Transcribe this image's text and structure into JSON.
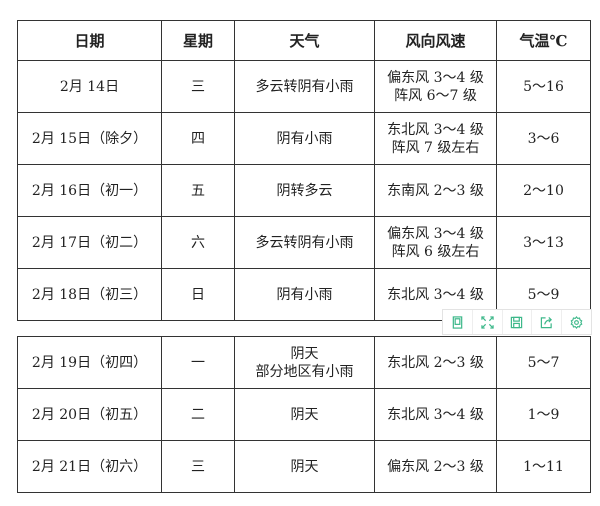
{
  "headers": [
    "日期",
    "星期",
    "天气",
    "风向风速",
    "气温℃"
  ],
  "rows_top": [
    {
      "date": "2月 14日",
      "weekday": "三",
      "weather": [
        "多云转阴有小雨"
      ],
      "wind": [
        "偏东风 3～4 级",
        "阵风 6～7 级"
      ],
      "temp": "5～16"
    },
    {
      "date": "2月 15日（除夕）",
      "weekday": "四",
      "weather": [
        "阴有小雨"
      ],
      "wind": [
        "东北风 3～4 级",
        "阵风 7 级左右"
      ],
      "temp": "3～6"
    },
    {
      "date": "2月 16日（初一）",
      "weekday": "五",
      "weather": [
        "阴转多云"
      ],
      "wind": [
        "东南风 2～3 级"
      ],
      "temp": "2～10"
    },
    {
      "date": "2月 17日（初二）",
      "weekday": "六",
      "weather": [
        "多云转阴有小雨"
      ],
      "wind": [
        "偏东风 3～4 级",
        "阵风 6 级左右"
      ],
      "temp": "3～13"
    },
    {
      "date": "2月 18日（初三）",
      "weekday": "日",
      "weather": [
        "阴有小雨"
      ],
      "wind": [
        "东北风 3～4 级"
      ],
      "temp": "5～9"
    }
  ],
  "rows_bottom": [
    {
      "date": "2月 19日（初四）",
      "weekday": "一",
      "weather": [
        "阴天",
        "部分地区有小雨"
      ],
      "wind": [
        "东北风 2～3 级"
      ],
      "temp": "5～7"
    },
    {
      "date": "2月 20日（初五）",
      "weekday": "二",
      "weather": [
        "阴天"
      ],
      "wind": [
        "东北风 3～4 级"
      ],
      "temp": "1～9"
    },
    {
      "date": "2月 21日（初六）",
      "weekday": "三",
      "weather": [
        "阴天"
      ],
      "wind": [
        "偏东风 2～3 级"
      ],
      "temp": "1～11"
    }
  ],
  "toolbar": {
    "accent": "#3db88a",
    "icons": [
      "tablet-icon",
      "fullscreen-icon",
      "save-icon",
      "share-icon",
      "settings-icon"
    ]
  }
}
